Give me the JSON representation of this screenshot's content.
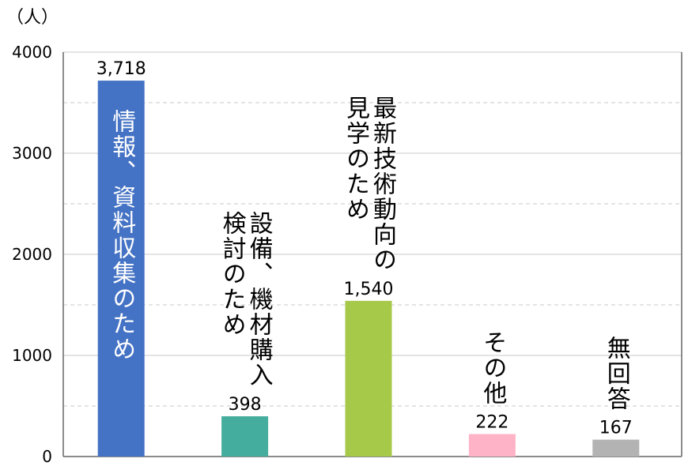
{
  "chart_data": {
    "type": "bar",
    "unit_label": "（人）",
    "ylim": [
      0,
      4000
    ],
    "yticks": [
      0,
      1000,
      2000,
      3000,
      4000
    ],
    "grid": true,
    "categories": [
      "情報、資料収集のため",
      "設備、機材購入検討のため",
      "最新技術動向の見学のため",
      "その他",
      "無回答"
    ],
    "values": [
      3718,
      398,
      1540,
      222,
      167
    ],
    "value_labels": [
      "3,718",
      "398",
      "1,540",
      "222",
      "167"
    ],
    "category_label_lines": [
      [
        "情報、資料収集のため"
      ],
      [
        "設備、機材購入",
        "検討のため"
      ],
      [
        "最新技術動向の",
        "見学のため"
      ],
      [
        "その他"
      ],
      [
        "無回答"
      ]
    ],
    "colors": [
      "#4472C4",
      "#45AD9D",
      "#A7C94A",
      "#FFB3C6",
      "#B3B3B3"
    ],
    "inside_label_color": "#ffffff"
  }
}
